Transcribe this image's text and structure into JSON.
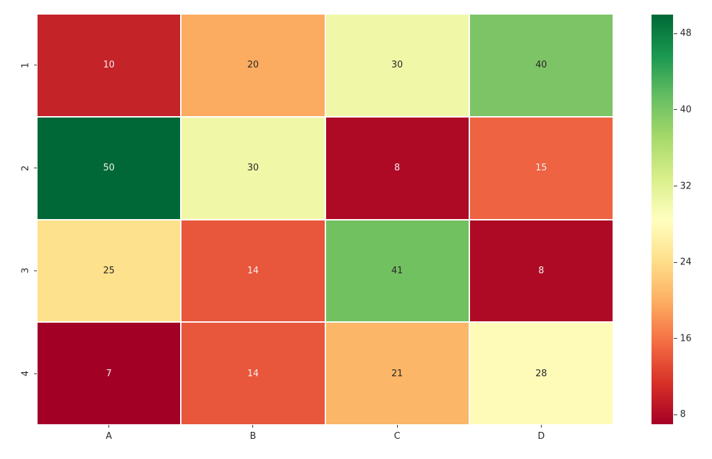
{
  "figure": {
    "background": "#ffffff"
  },
  "colors": {
    "annot_dark": "#262626",
    "annot_light": "#f5f0f0",
    "tick_label": "#262626",
    "tick_mark": "#333333",
    "cell_gap": "#ffffff"
  },
  "chart_data": {
    "type": "heatmap",
    "title": "",
    "xlabel": "",
    "ylabel": "",
    "columns": [
      "A",
      "B",
      "C",
      "D"
    ],
    "rows": [
      "1",
      "2",
      "3",
      "4"
    ],
    "values": [
      [
        10,
        20,
        30,
        40
      ],
      [
        50,
        30,
        8,
        15
      ],
      [
        25,
        14,
        41,
        8
      ],
      [
        7,
        14,
        21,
        28
      ]
    ],
    "annotated": true,
    "vmin": 7,
    "vmax": 50,
    "colormap": "RdYlGn",
    "legend_position": "right-colorbar",
    "colorbar_ticks": [
      8,
      16,
      24,
      32,
      40,
      48
    ],
    "colorbar_gradient_stops": [
      "#a50026",
      "#d73027",
      "#f46d43",
      "#fdae61",
      "#fee08b",
      "#ffffbf",
      "#d9ef8b",
      "#a6d96a",
      "#66bd63",
      "#1a9850",
      "#006837"
    ],
    "cell_colors": [
      [
        "#c42328",
        "#fcac60",
        "#f0f8a8",
        "#7cc465"
      ],
      [
        "#006837",
        "#f0f8a8",
        "#ae0a26",
        "#ee6342"
      ],
      [
        "#fde18c",
        "#e8563c",
        "#72c161",
        "#ae0a26"
      ],
      [
        "#a30026",
        "#e8563c",
        "#fcb667",
        "#fefbb9"
      ]
    ],
    "text_tones": [
      [
        "light",
        "dark",
        "dark",
        "dark"
      ],
      [
        "light",
        "dark",
        "light",
        "light"
      ],
      [
        "dark",
        "light",
        "dark",
        "light"
      ],
      [
        "light",
        "light",
        "dark",
        "dark"
      ]
    ]
  }
}
